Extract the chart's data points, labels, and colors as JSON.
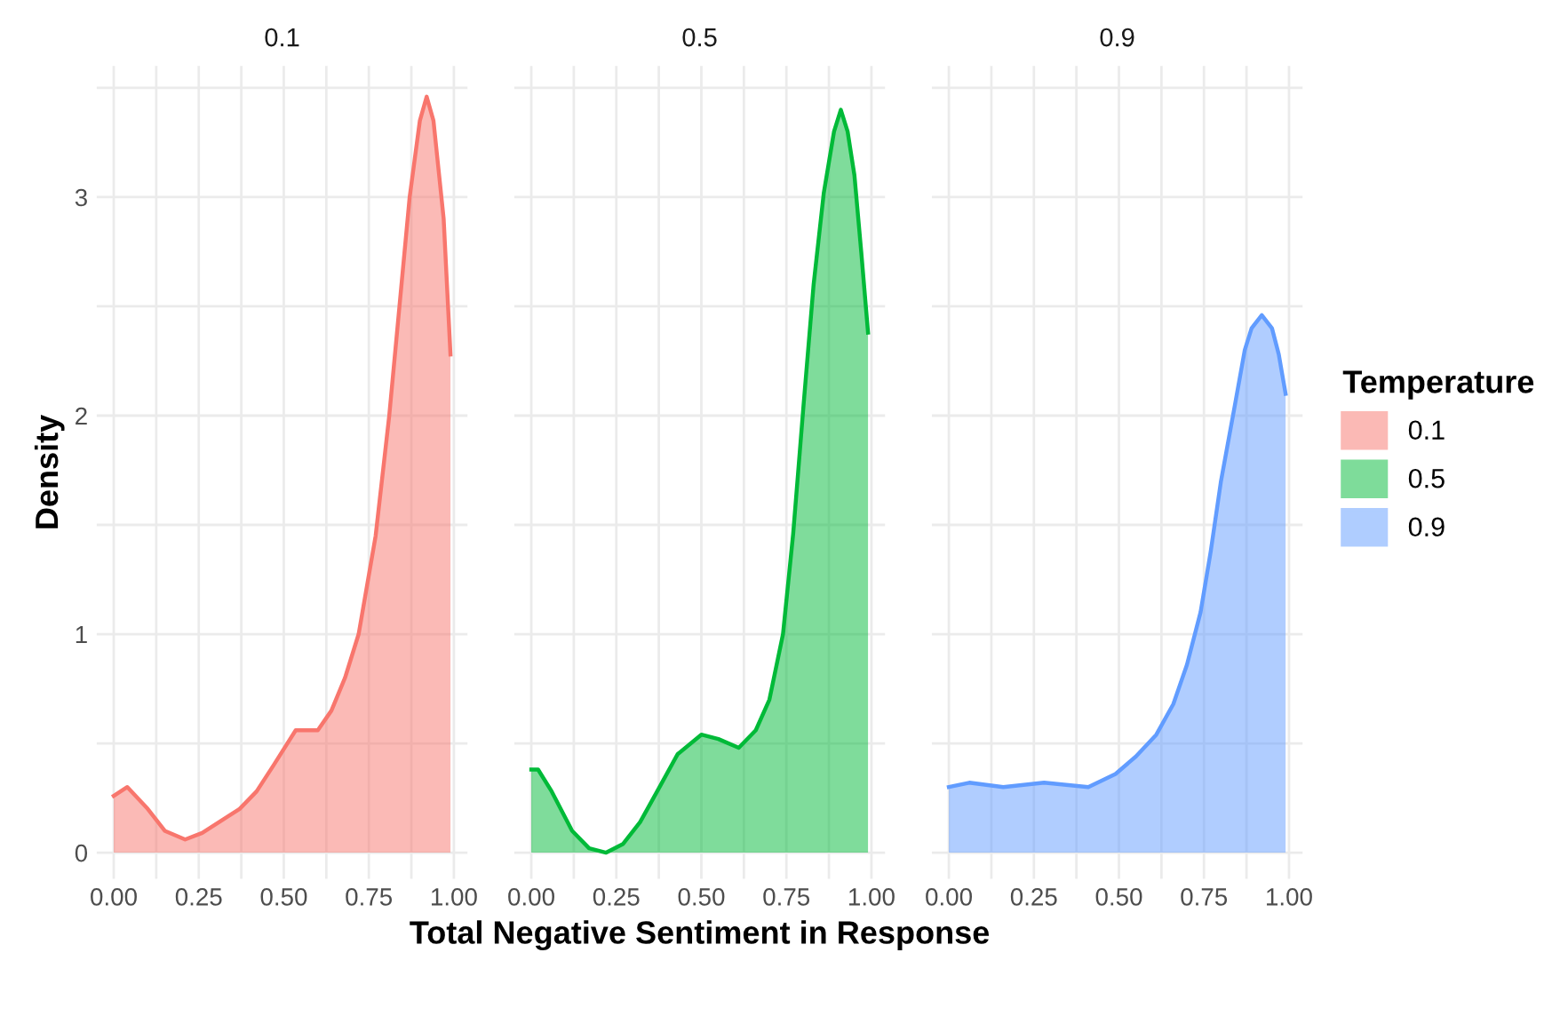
{
  "chart_data": [
    {
      "type": "area",
      "title": "0.1",
      "ylabel": "Density",
      "xlim": [
        -0.05,
        1.04
      ],
      "ylim": [
        -0.12,
        3.6
      ],
      "grid": true,
      "xticks": [
        {
          "value": 0,
          "label": "0.00"
        },
        {
          "value": 0.125,
          "label": null
        },
        {
          "value": 0.25,
          "label": "0.25"
        },
        {
          "value": 0.375,
          "label": null
        },
        {
          "value": 0.5,
          "label": "0.50"
        },
        {
          "value": 0.625,
          "label": null
        },
        {
          "value": 0.75,
          "label": "0.75"
        },
        {
          "value": 0.875,
          "label": null
        },
        {
          "value": 1,
          "label": "1.00"
        }
      ],
      "yticks": [
        0,
        {
          "value": 0.5,
          "label": null
        },
        1,
        {
          "value": 1.5,
          "label": null
        },
        2,
        {
          "value": 2.5,
          "label": null
        },
        3,
        {
          "value": 3.5,
          "label": null
        }
      ],
      "series": [
        {
          "name": "0.1",
          "color": "#f8766d",
          "x": [
            0,
            0.04,
            0.1,
            0.15,
            0.21,
            0.26,
            0.32,
            0.37,
            0.42,
            0.47,
            0.535,
            0.6,
            0.64,
            0.68,
            0.72,
            0.77,
            0.81,
            0.84,
            0.87,
            0.9,
            0.92,
            0.94,
            0.97,
            0.99
          ],
          "values": [
            0.26,
            0.3,
            0.2,
            0.1,
            0.06,
            0.09,
            0.15,
            0.2,
            0.28,
            0.4,
            0.56,
            0.56,
            0.65,
            0.8,
            1.0,
            1.45,
            2.0,
            2.5,
            3.0,
            3.35,
            3.46,
            3.35,
            2.9,
            2.28
          ]
        }
      ]
    },
    {
      "type": "area",
      "title": "0.5",
      "xlabel": "Total Negative Sentiment in Response",
      "xlim": [
        -0.05,
        1.04
      ],
      "ylim": [
        -0.12,
        3.6
      ],
      "grid": true,
      "tick_labels": "x",
      "xticks": [
        {
          "value": 0,
          "label": "0.00"
        },
        {
          "value": 0.125,
          "label": null
        },
        {
          "value": 0.25,
          "label": "0.25"
        },
        {
          "value": 0.375,
          "label": null
        },
        {
          "value": 0.5,
          "label": "0.50"
        },
        {
          "value": 0.625,
          "label": null
        },
        {
          "value": 0.75,
          "label": "0.75"
        },
        {
          "value": 0.875,
          "label": null
        },
        {
          "value": 1,
          "label": "1.00"
        }
      ],
      "yticks": [
        0,
        {
          "value": 0.5,
          "label": null
        },
        1,
        {
          "value": 1.5,
          "label": null
        },
        2,
        {
          "value": 2.5,
          "label": null
        },
        3,
        {
          "value": 3.5,
          "label": null
        }
      ],
      "series": [
        {
          "name": "0.5",
          "color": "#00ba38",
          "x": [
            0,
            0.02,
            0.06,
            0.12,
            0.17,
            0.22,
            0.27,
            0.32,
            0.37,
            0.43,
            0.5,
            0.55,
            0.61,
            0.66,
            0.7,
            0.74,
            0.77,
            0.8,
            0.83,
            0.86,
            0.89,
            0.91,
            0.93,
            0.95,
            0.97,
            0.99
          ],
          "values": [
            0.38,
            0.38,
            0.28,
            0.1,
            0.02,
            0.0,
            0.04,
            0.14,
            0.28,
            0.45,
            0.54,
            0.52,
            0.48,
            0.56,
            0.7,
            1.0,
            1.46,
            2.04,
            2.6,
            3.02,
            3.3,
            3.4,
            3.3,
            3.1,
            2.75,
            2.38
          ]
        }
      ]
    },
    {
      "type": "area",
      "title": "0.9",
      "xlim": [
        -0.05,
        1.04
      ],
      "ylim": [
        -0.12,
        3.6
      ],
      "grid": true,
      "tick_labels": "x",
      "legend": "right",
      "legend_title": "Temperature",
      "xticks": [
        {
          "value": 0,
          "label": "0.00"
        },
        {
          "value": 0.125,
          "label": null
        },
        {
          "value": 0.25,
          "label": "0.25"
        },
        {
          "value": 0.375,
          "label": null
        },
        {
          "value": 0.5,
          "label": "0.50"
        },
        {
          "value": 0.625,
          "label": null
        },
        {
          "value": 0.75,
          "label": "0.75"
        },
        {
          "value": 0.875,
          "label": null
        },
        {
          "value": 1,
          "label": "1.00"
        }
      ],
      "yticks": [
        0,
        {
          "value": 0.5,
          "label": null
        },
        1,
        {
          "value": 1.5,
          "label": null
        },
        2,
        {
          "value": 2.5,
          "label": null
        },
        3,
        {
          "value": 3.5,
          "label": null
        }
      ],
      "series": [
        {
          "name": "0.9",
          "color": "#619cff",
          "x": [
            0,
            0.06,
            0.16,
            0.28,
            0.41,
            0.49,
            0.55,
            0.61,
            0.66,
            0.7,
            0.74,
            0.77,
            0.8,
            0.84,
            0.87,
            0.89,
            0.92,
            0.95,
            0.97,
            0.99
          ],
          "values": [
            0.3,
            0.32,
            0.3,
            0.32,
            0.3,
            0.36,
            0.44,
            0.54,
            0.68,
            0.86,
            1.1,
            1.38,
            1.7,
            2.04,
            2.3,
            2.4,
            2.46,
            2.4,
            2.28,
            2.1
          ]
        }
      ]
    }
  ]
}
